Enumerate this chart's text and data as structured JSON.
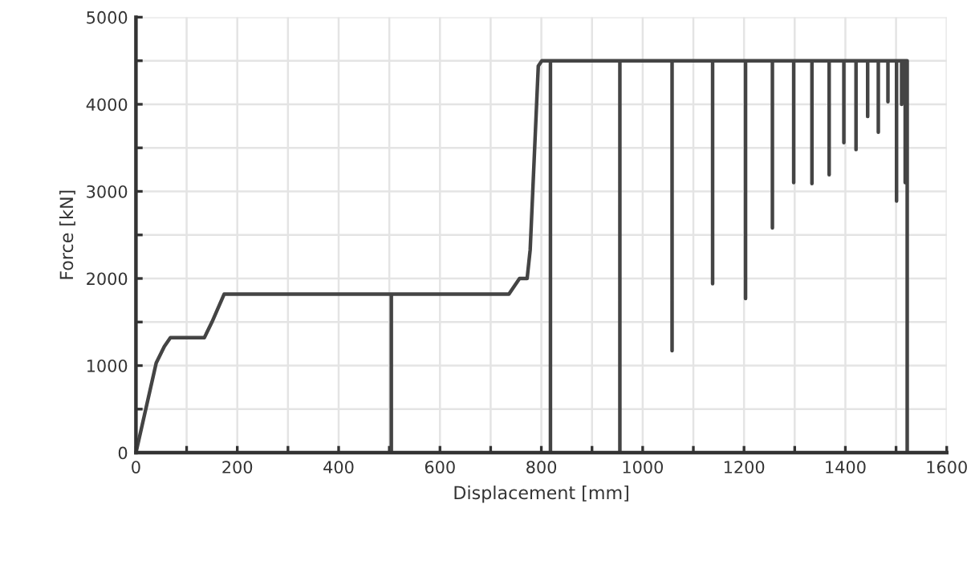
{
  "chart_data": {
    "type": "line",
    "xlabel": "Displacement [mm]",
    "ylabel": "Force [kN]",
    "x": [
      0,
      40,
      56,
      68,
      135,
      150,
      174,
      504,
      504,
      504,
      736,
      757,
      772,
      778,
      794,
      801,
      818,
      818,
      818,
      955,
      955,
      955,
      1058,
      1058,
      1058,
      1138,
      1138,
      1138,
      1203,
      1203,
      1203,
      1256,
      1256,
      1256,
      1298,
      1298,
      1298,
      1334,
      1334,
      1334,
      1368,
      1368,
      1368,
      1397,
      1397,
      1397,
      1421,
      1421,
      1421,
      1444,
      1444,
      1444,
      1465,
      1465,
      1465,
      1484,
      1484,
      1484,
      1501,
      1501,
      1501,
      1511,
      1511,
      1511,
      1518,
      1518,
      1518,
      1522,
      1522
    ],
    "series": [
      {
        "color": "#444444",
        "values": [
          0,
          1030,
          1220,
          1320,
          1320,
          1500,
          1820,
          1820,
          0,
          1820,
          1820,
          2000,
          2000,
          2330,
          4440,
          4500,
          4500,
          0,
          4500,
          4500,
          0,
          4500,
          4500,
          1170,
          4500,
          4500,
          1940,
          4500,
          4500,
          1770,
          4500,
          4500,
          2580,
          4500,
          4500,
          3100,
          4500,
          4500,
          3090,
          4500,
          4500,
          3190,
          4500,
          4500,
          3560,
          4500,
          4500,
          3480,
          4500,
          4500,
          3860,
          4500,
          4500,
          3680,
          4500,
          4500,
          4030,
          4500,
          4500,
          2890,
          4500,
          4500,
          4000,
          4500,
          4500,
          3100,
          4500,
          4500,
          0
        ]
      }
    ],
    "xlim": [
      0,
      1600
    ],
    "xticks": [
      0,
      {
        "value": 100,
        "label": null
      },
      200,
      {
        "value": 300,
        "label": null
      },
      400,
      {
        "value": 500,
        "label": null
      },
      600,
      {
        "value": 700,
        "label": null
      },
      800,
      {
        "value": 900,
        "label": null
      },
      1000,
      {
        "value": 1100,
        "label": null
      },
      1200,
      {
        "value": 1300,
        "label": null
      },
      1400,
      {
        "value": 1500,
        "label": null
      },
      1600
    ],
    "ylim": [
      0,
      5000
    ],
    "yticks": [
      0,
      {
        "value": 500,
        "label": null
      },
      1000,
      {
        "value": 1500,
        "label": null
      },
      2000,
      {
        "value": 2500,
        "label": null
      },
      3000,
      {
        "value": 3500,
        "label": null
      },
      4000,
      {
        "value": 4500,
        "label": null
      },
      5000
    ],
    "grid": true,
    "marker": "none",
    "line_style": "solid"
  }
}
